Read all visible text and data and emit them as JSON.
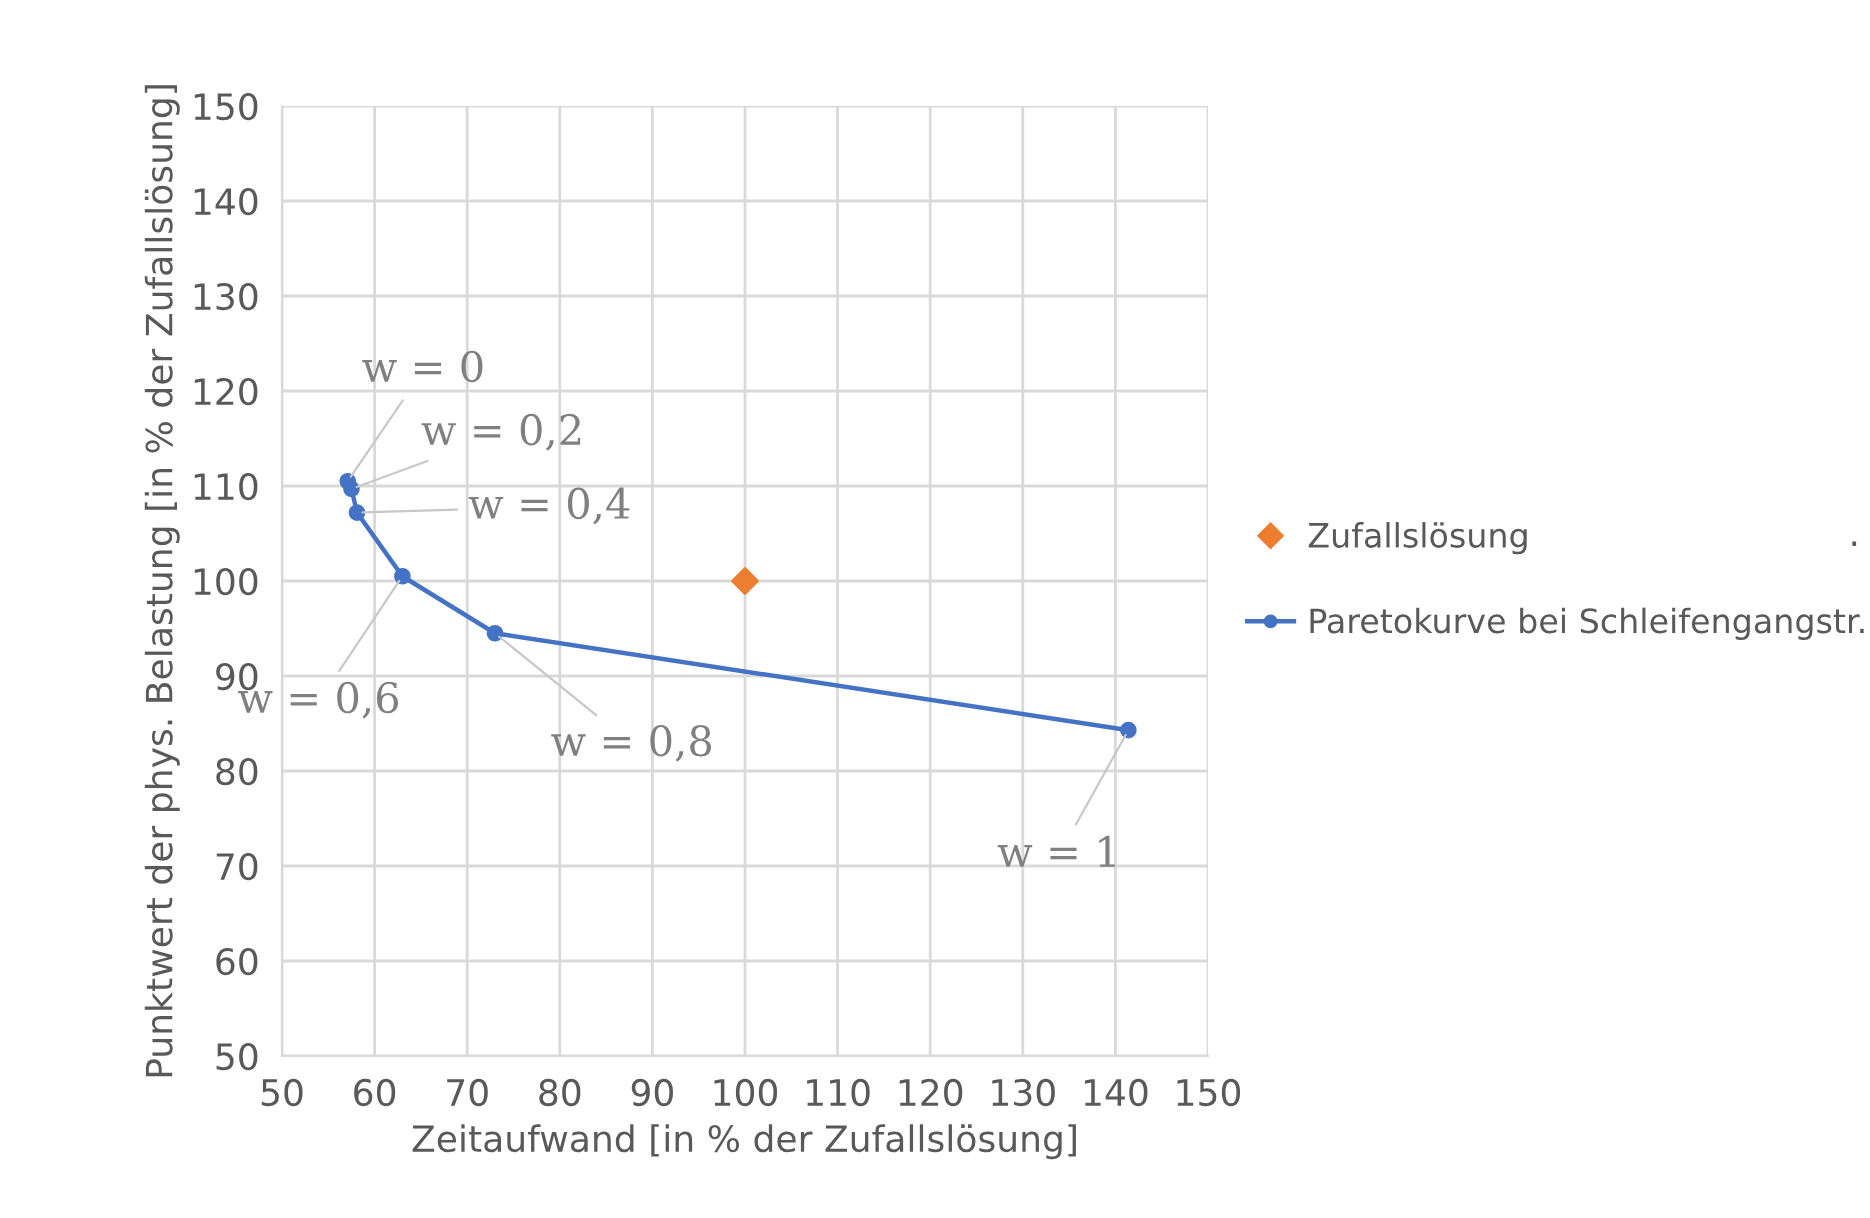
{
  "chart_data": {
    "type": "line",
    "xlabel": "Zeitaufwand [in % der Zufallslösung]",
    "ylabel": "Punktwert der phys. Belastung [in % der Zufallslösung]",
    "xlim": [
      50,
      150
    ],
    "xticks": [
      50,
      60,
      70,
      80,
      90,
      100,
      110,
      120,
      130,
      140,
      150
    ],
    "ylim": [
      50,
      150
    ],
    "yticks": [
      50,
      60,
      70,
      80,
      90,
      100,
      110,
      120,
      130,
      140,
      150
    ],
    "grid": true,
    "legend": "right",
    "series": [
      {
        "name": "Zufallslösung",
        "type": "scatter",
        "marker": "diamond",
        "color": "#ed7d31",
        "x": [
          100
        ],
        "values": [
          100
        ]
      },
      {
        "name": "Paretokurve bei Schleifengangstr.",
        "marker": "circle",
        "line_style": "solid",
        "color": "#4472c4",
        "x": [
          57.1,
          57.5,
          58.1,
          63.0,
          73.0,
          141.4
        ],
        "values": [
          110.5,
          109.7,
          107.2,
          100.5,
          94.5,
          84.3
        ]
      }
    ],
    "annotations": [
      {
        "text": "w = 0",
        "x": 57.1,
        "y": 110.5
      },
      {
        "text": "w = 0,2",
        "x": 57.5,
        "y": 109.7
      },
      {
        "text": "w = 0,4",
        "x": 58.1,
        "y": 107.2
      },
      {
        "text": "w = 0,6",
        "x": 63.0,
        "y": 100.5
      },
      {
        "text": "w = 0,8",
        "x": 73.0,
        "y": 94.5
      },
      {
        "text": "w = 1",
        "x": 141.4,
        "y": 84.3
      },
      "."
    ]
  }
}
